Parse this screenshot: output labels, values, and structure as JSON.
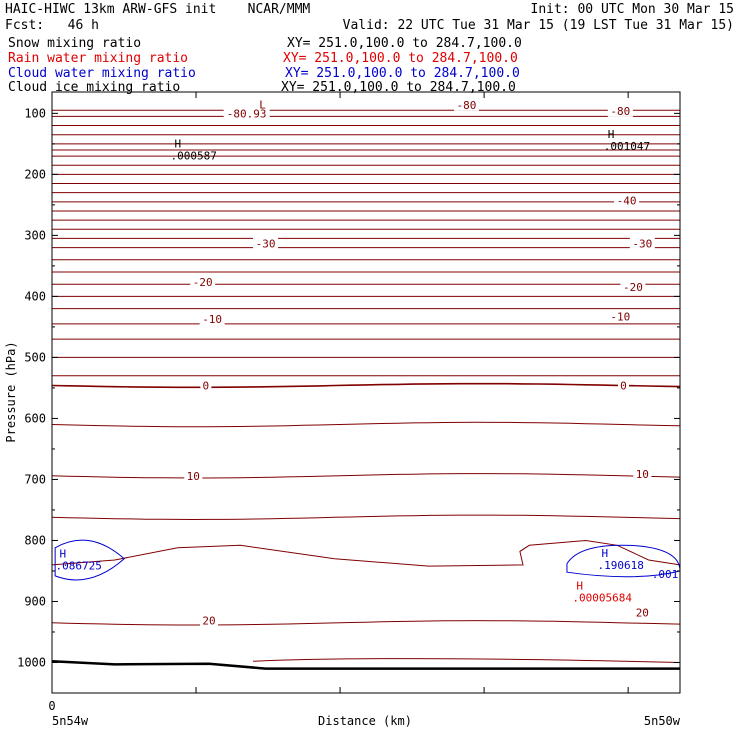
{
  "header": {
    "left_line1": "HAIC-HIWC 13km ARW-GFS init    NCAR/MMM",
    "left_line2": "Fcst:   46 h",
    "right_line1": "Init: 00 UTC Mon 30 Mar 15",
    "right_line2": "Valid: 22 UTC Tue 31 Mar 15 (19 LST Tue 31 Mar 15)",
    "fields": [
      {
        "name": "Snow mixing ratio",
        "xy": "XY= 251.0,100.0 to 284.7,100.0",
        "color": "#000000"
      },
      {
        "name": "Rain water mixing ratio",
        "xy": "XY= 251.0,100.0 to 284.7,100.0",
        "color": "#e00000"
      },
      {
        "name": "Cloud water mixing ratio",
        "xy": "XY= 251.0,100.0 to 284.7,100.0",
        "color": "#0000cc"
      },
      {
        "name": "Cloud ice mixing ratio",
        "xy": "XY= 251.0,100.0 to 284.7,100.0",
        "color": "#000000"
      }
    ]
  },
  "chart_data": {
    "type": "contour",
    "ylabel": "Pressure (hPa)",
    "xlabel": "Distance (km)",
    "x_start_label": "0",
    "x_left_label": "5n54w",
    "x_right_label": "5n50w",
    "y_ticks": [
      100,
      200,
      300,
      400,
      500,
      600,
      700,
      800,
      900,
      1000
    ],
    "y_range": [
      1050,
      65
    ],
    "temperature_color": "#800000",
    "contour_labels": [
      {
        "text": "-80",
        "p": 86,
        "x": 0.66
      },
      {
        "text": "-80",
        "p": 96,
        "x": 0.905
      },
      {
        "text": "-80.93",
        "p": 100,
        "x": 0.31
      },
      {
        "text": "-40",
        "p": 243,
        "x": 0.915
      },
      {
        "text": "-30",
        "p": 313,
        "x": 0.34
      },
      {
        "text": "-30",
        "p": 313,
        "x": 0.94
      },
      {
        "text": "-20",
        "p": 376,
        "x": 0.24
      },
      {
        "text": "-20",
        "p": 385,
        "x": 0.925
      },
      {
        "text": "-10",
        "p": 437,
        "x": 0.255
      },
      {
        "text": "-10",
        "p": 433,
        "x": 0.905
      },
      {
        "text": "0",
        "p": 546,
        "x": 0.245
      },
      {
        "text": "0",
        "p": 546,
        "x": 0.91
      },
      {
        "text": "10",
        "p": 694,
        "x": 0.225
      },
      {
        "text": "10",
        "p": 691,
        "x": 0.94
      },
      {
        "text": "20",
        "p": 931,
        "x": 0.25
      },
      {
        "text": "20",
        "p": 918,
        "x": 0.94
      }
    ],
    "extrema": [
      {
        "letter": "L",
        "value": "",
        "p": 92,
        "x": 0.33,
        "color": "#800000"
      },
      {
        "letter": "H",
        "value": ".000587",
        "p": 156,
        "x": 0.195,
        "color": "#000000"
      },
      {
        "letter": "H",
        "value": ".001047",
        "p": 140,
        "x": 0.885,
        "color": "#000000"
      },
      {
        "letter": "H",
        "value": ".086725",
        "p": 828,
        "x": 0.012,
        "color": "#0000cc"
      },
      {
        "letter": "H",
        "value": ".190618",
        "p": 827,
        "x": 0.875,
        "color": "#0000cc"
      },
      {
        "letter": "H",
        "value": ".00005684",
        "p": 880,
        "x": 0.835,
        "color": "#e00000"
      }
    ],
    "cloud_water_labels": [
      {
        "text": ".001",
        "p": 855,
        "x": 0.955
      }
    ]
  }
}
